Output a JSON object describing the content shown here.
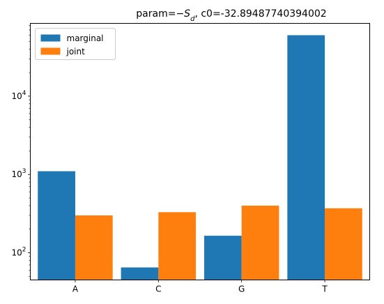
{
  "chart_data": {
    "type": "bar",
    "title_prefix": "param=",
    "title_symbol": "−S",
    "title_subscript": "d",
    "title_suffix": ", c0=-32.89487740394002",
    "categories": [
      "A",
      "C",
      "G",
      "T"
    ],
    "series": [
      {
        "name": "marginal",
        "color": "#1f77b4",
        "values": [
          1100,
          65,
          165,
          60000
        ]
      },
      {
        "name": "joint",
        "color": "#ff7f0e",
        "values": [
          300,
          330,
          400,
          370
        ]
      }
    ],
    "yscale": "log",
    "ylim": [
      45,
      85000
    ],
    "yticks": [
      {
        "value": 100,
        "base": "10",
        "exp": "2"
      },
      {
        "value": 1000,
        "base": "10",
        "exp": "3"
      },
      {
        "value": 10000,
        "base": "10",
        "exp": "4"
      }
    ],
    "grid": false,
    "legend_position": "upper-left"
  }
}
